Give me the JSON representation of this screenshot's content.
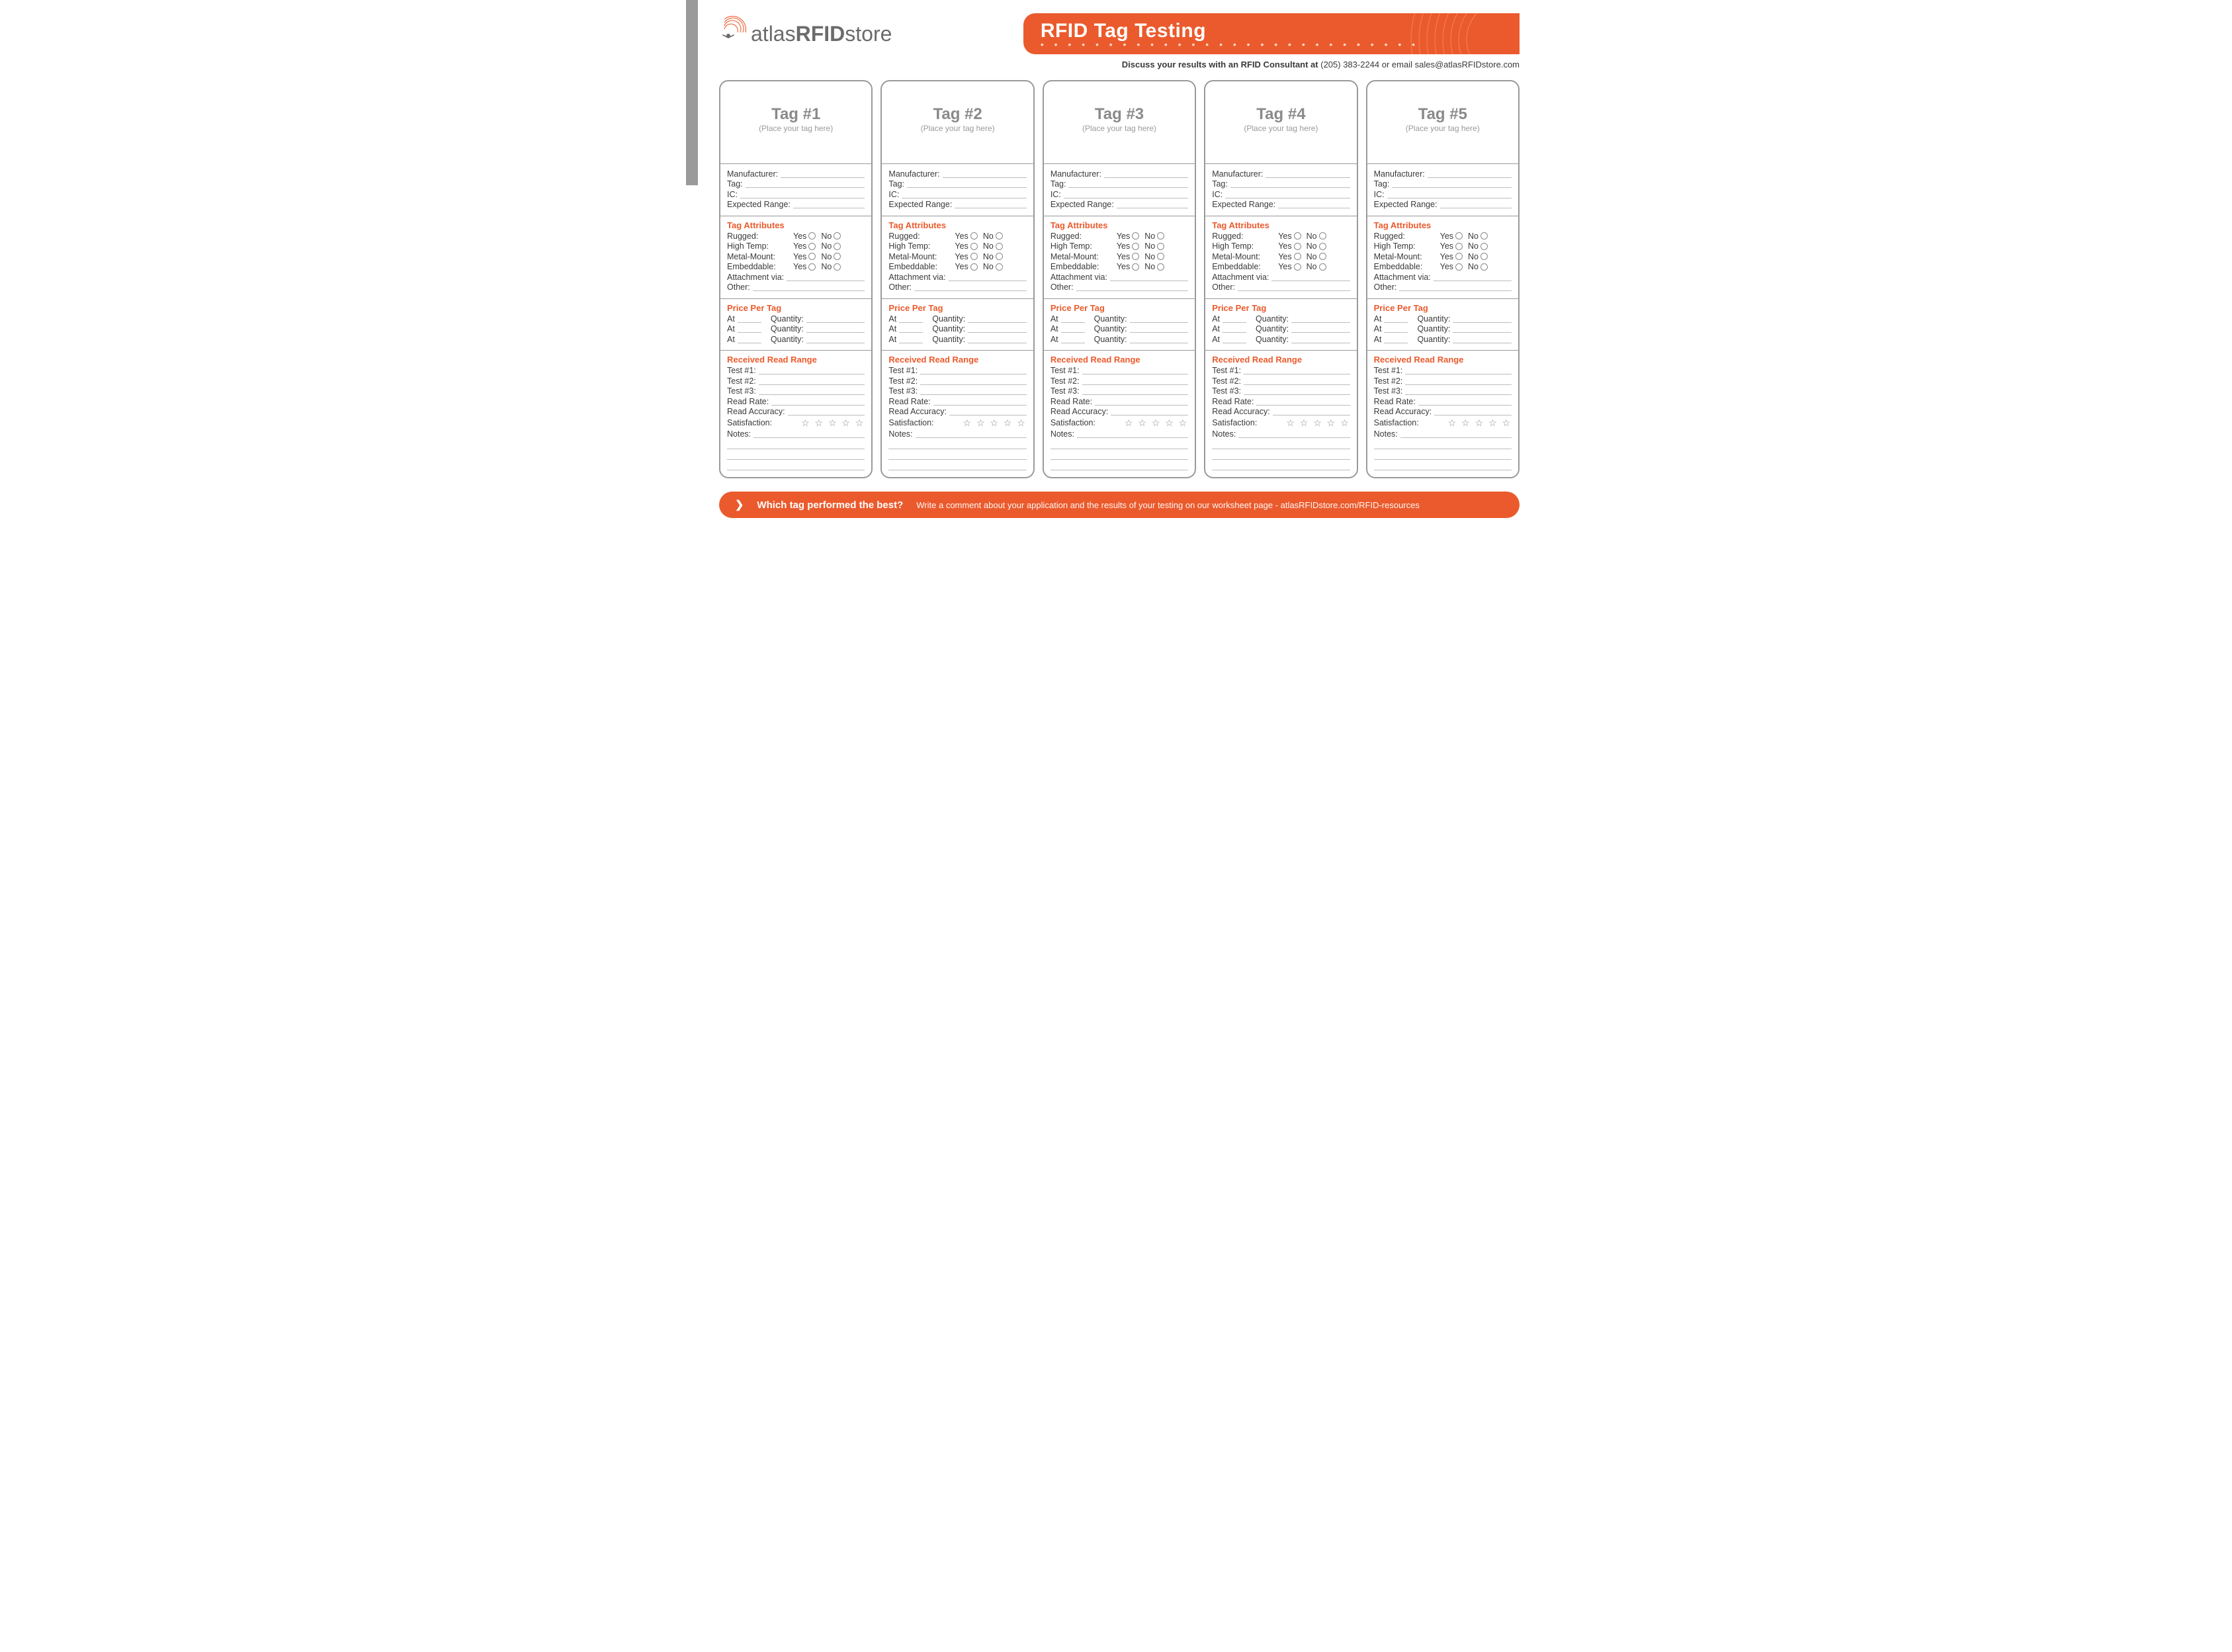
{
  "brand": {
    "logo_prefix": "atlas",
    "logo_mid": "RFID",
    "logo_suffix": "store"
  },
  "banner": {
    "title": "RFID Tag Testing",
    "dots": "• • • • • • • • • • • • • • • • • • • • • • • • • • • •"
  },
  "subhead": {
    "bold": "Discuss your results with an RFID Consultant at ",
    "rest": "(205) 383-2244 or email sales@atlasRFIDstore.com"
  },
  "card_labels": {
    "place": "(Place your tag here)",
    "manufacturer": "Manufacturer:",
    "tag": "Tag:",
    "ic": "IC:",
    "expected_range": "Expected Range:",
    "attributes_title": "Tag Attributes",
    "rugged": "Rugged:",
    "high_temp": "High Temp:",
    "metal_mount": "Metal-Mount:",
    "embeddable": "Embeddable:",
    "attachment": "Attachment via:",
    "other": "Other:",
    "yes": "Yes",
    "no": "No",
    "price_title": "Price Per Tag",
    "at": "At",
    "quantity": "Quantity:",
    "range_title": "Received Read Range",
    "test1": "Test #1:",
    "test2": "Test #2:",
    "test3": "Test #3:",
    "read_rate": "Read Rate:",
    "read_accuracy": "Read Accuracy:",
    "satisfaction": "Satisfaction:",
    "notes": "Notes:",
    "stars": "☆ ☆ ☆ ☆ ☆"
  },
  "tags": [
    {
      "title": "Tag #1"
    },
    {
      "title": "Tag #2"
    },
    {
      "title": "Tag #3"
    },
    {
      "title": "Tag #4"
    },
    {
      "title": "Tag #5"
    }
  ],
  "footer": {
    "question": "Which tag performed the best?",
    "rest": "Write a comment about your application and the results of your testing on our worksheet page - atlasRFIDstore.com/RFID-resources"
  },
  "colors": {
    "accent": "#eb5a2c",
    "gray": "#9a9a9a",
    "text": "#3a3a3a",
    "line": "#bdbdbd"
  }
}
